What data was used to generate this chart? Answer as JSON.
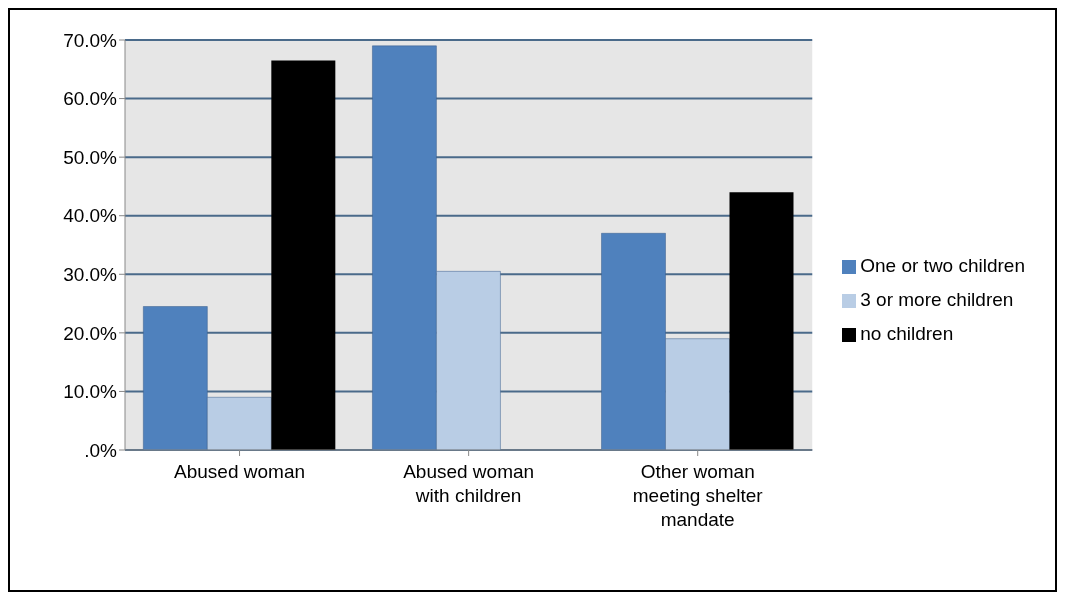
{
  "chart_data": {
    "type": "bar",
    "categories": [
      "Abused woman",
      "Abused woman with children",
      "Other woman meeting shelter mandate"
    ],
    "series": [
      {
        "name": "One or two children",
        "color": "#4f81bd",
        "values": [
          24.5,
          69,
          37
        ]
      },
      {
        "name": "3 or more children",
        "color": "#b9cde5",
        "values": [
          9,
          30.5,
          19
        ]
      },
      {
        "name": "no children",
        "color": "#000000",
        "values": [
          66.5,
          0,
          44
        ]
      }
    ],
    "ylim": [
      0,
      70
    ],
    "yticks": [
      {
        "value": 0,
        "label": ".0%"
      },
      {
        "value": 10,
        "label": "10.0%"
      },
      {
        "value": 20,
        "label": "20.0%"
      },
      {
        "value": 30,
        "label": "30.0%"
      },
      {
        "value": 40,
        "label": "40.0%"
      },
      {
        "value": 50,
        "label": "50.0%"
      },
      {
        "value": 60,
        "label": "60.0%"
      },
      {
        "value": 70,
        "label": "70.0%"
      }
    ],
    "grid": "y",
    "legend": "right"
  }
}
